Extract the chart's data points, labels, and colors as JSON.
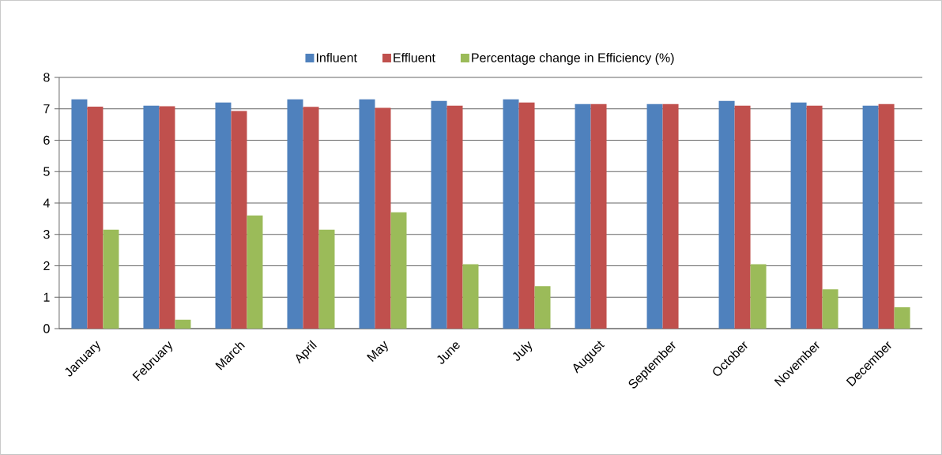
{
  "chart_data": {
    "type": "bar",
    "categories": [
      "January",
      "February",
      "March",
      "April",
      "May",
      "June",
      "July",
      "August",
      "September",
      "October",
      "November",
      "December"
    ],
    "series": [
      {
        "name": "Influent",
        "color": "#4f81bd",
        "values": [
          7.3,
          7.1,
          7.2,
          7.3,
          7.3,
          7.25,
          7.3,
          7.15,
          7.15,
          7.25,
          7.2,
          7.1
        ]
      },
      {
        "name": "Effluent",
        "color": "#c0504d",
        "values": [
          7.07,
          7.08,
          6.93,
          7.06,
          7.03,
          7.1,
          7.2,
          7.15,
          7.15,
          7.1,
          7.1,
          7.15
        ]
      },
      {
        "name": "Percentage change in Efficiency (%)",
        "color": "#9bbb59",
        "values": [
          3.15,
          0.28,
          3.6,
          3.15,
          3.7,
          2.05,
          1.35,
          0,
          0,
          2.05,
          1.25,
          0.68
        ]
      }
    ],
    "ylim": [
      0,
      8
    ],
    "yticks": [
      0,
      1,
      2,
      3,
      4,
      5,
      6,
      7,
      8
    ],
    "grid": "y",
    "legend": "top"
  }
}
